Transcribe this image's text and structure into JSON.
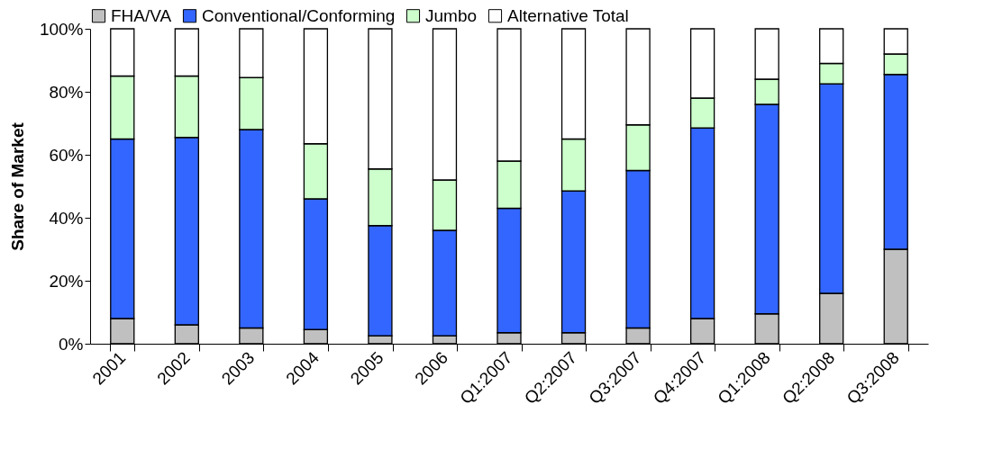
{
  "chart_data": {
    "type": "bar",
    "stacked": true,
    "ylabel": "Share of Market",
    "categories": [
      "2001",
      "2002",
      "2003",
      "2004",
      "2005",
      "2006",
      "Q1:2007",
      "Q2:2007",
      "Q3:2007",
      "Q4:2007",
      "Q1:2008",
      "Q2:2008",
      "Q3:2008"
    ],
    "series": [
      {
        "name": "FHA/VA",
        "color": "#c0c0c0",
        "values": [
          8,
          6,
          5,
          4.5,
          2.5,
          2.5,
          3.5,
          3.5,
          5,
          8,
          9.5,
          16,
          30
        ]
      },
      {
        "name": "Conventional/Conforming",
        "color": "#3366ff",
        "values": [
          57,
          59.5,
          63,
          41.5,
          35,
          33.5,
          39.5,
          45,
          50,
          60.5,
          66.5,
          66.5,
          55.5
        ]
      },
      {
        "name": "Jumbo",
        "color": "#ccffcc",
        "values": [
          20,
          19.5,
          16.5,
          17.5,
          18,
          16,
          15,
          16.5,
          14.5,
          9.5,
          8,
          6.5,
          6.5
        ]
      },
      {
        "name": "Alternative Total",
        "color": "#ffffff",
        "values": [
          15,
          15,
          15.5,
          36.5,
          44.5,
          48,
          42,
          35,
          30.5,
          22,
          16,
          11,
          8
        ]
      }
    ],
    "ylim": [
      0,
      100
    ],
    "yticks": [
      {
        "value": 0,
        "label": "0%"
      },
      {
        "value": 20,
        "label": "20%"
      },
      {
        "value": 40,
        "label": "40%"
      },
      {
        "value": 60,
        "label": "60%"
      },
      {
        "value": 80,
        "label": "80%"
      },
      {
        "value": 100,
        "label": "100%"
      }
    ],
    "grid": false,
    "legend": "top"
  }
}
